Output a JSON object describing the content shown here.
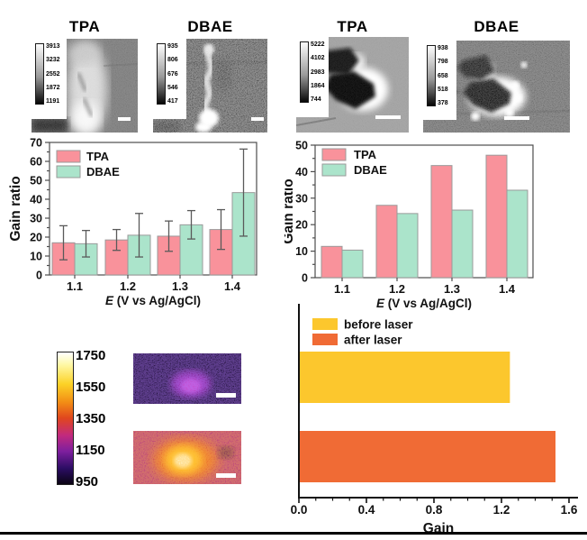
{
  "figure": {
    "top_left": {
      "panels": [
        {
          "title": "TPA",
          "colorbar": [
            "3913",
            "3232",
            "2552",
            "1872",
            "1191"
          ]
        },
        {
          "title": "DBAE",
          "colorbar": [
            "935",
            "806",
            "676",
            "546",
            "417"
          ]
        }
      ]
    },
    "top_right": {
      "panels": [
        {
          "title": "TPA",
          "colorbar": [
            "5222",
            "4102",
            "2983",
            "1864",
            "744"
          ]
        },
        {
          "title": "DBAE",
          "colorbar": [
            "938",
            "798",
            "658",
            "518",
            "378"
          ]
        }
      ]
    },
    "bottom_left_colorbar": {
      "labels": [
        "1750",
        "1550",
        "1350",
        "1150",
        "950"
      ]
    }
  },
  "chart_data": [
    {
      "id": "gain-ratio-left",
      "type": "bar",
      "categories": [
        "1.1",
        "1.2",
        "1.3",
        "1.4"
      ],
      "series": [
        {
          "name": "TPA",
          "color": "#F9929B",
          "values": [
            17,
            18.5,
            20.5,
            24
          ],
          "errors": [
            9,
            5.5,
            8,
            10.5
          ]
        },
        {
          "name": "DBAE",
          "color": "#ABE4CB",
          "values": [
            16.5,
            21,
            26.5,
            43.5
          ],
          "errors": [
            7,
            11.5,
            7.5,
            23
          ]
        }
      ],
      "ylabel": "Gain ratio",
      "xlabel_italic": "E",
      "xlabel_rest": " (V vs Ag/AgCl)",
      "ylim": [
        0,
        70
      ],
      "ytick_step": 10,
      "bar_edge": "#9a9a9a",
      "error_color": "#5a5a5a",
      "legend_position": "top-left",
      "grid": false
    },
    {
      "id": "gain-ratio-right",
      "type": "bar",
      "categories": [
        "1.1",
        "1.2",
        "1.3",
        "1.4"
      ],
      "series": [
        {
          "name": "TPA",
          "color": "#F9929B",
          "values": [
            11.8,
            27.3,
            42.3,
            46.2
          ]
        },
        {
          "name": "DBAE",
          "color": "#ABE4CB",
          "values": [
            10.4,
            24.2,
            25.5,
            33
          ]
        }
      ],
      "ylabel": "Gain ratio",
      "xlabel_italic": "E",
      "xlabel_rest": " (V vs Ag/AgCl)",
      "ylim": [
        0,
        50
      ],
      "ytick_step": 10,
      "bar_edge": "#9a9a9a",
      "legend_position": "top-left",
      "grid": false
    },
    {
      "id": "gain-laser",
      "type": "bar-horizontal",
      "bars": [
        {
          "name": "before laser",
          "color": "#FCC72D",
          "value": 1.25
        },
        {
          "name": "after laser",
          "color": "#F06B35",
          "value": 1.52
        }
      ],
      "xlabel": "Gain",
      "xlim": [
        0,
        1.6
      ],
      "xticks": [
        "0.0",
        "0.4",
        "0.8",
        "1.2",
        "1.6"
      ],
      "minor_step": 0.1,
      "legend_position": "top-left",
      "grid": false
    }
  ]
}
